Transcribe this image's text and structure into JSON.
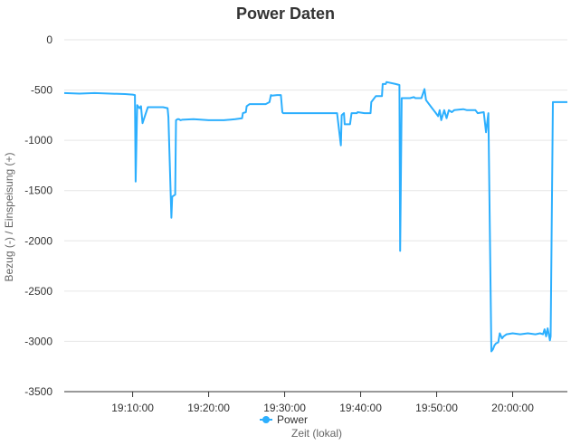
{
  "chart_data": {
    "type": "line",
    "title": "Power Daten",
    "xlabel": "Zeit (lokal)",
    "ylabel": "Bezug (-) / Einspeisung (+)",
    "ylim": [
      -3500,
      0
    ],
    "yticks": [
      0,
      -500,
      -1000,
      -1500,
      -2000,
      -2500,
      -3000,
      -3500
    ],
    "xlim": [
      0,
      66.2
    ],
    "xticks": [
      {
        "value": 9,
        "label": "19:10:00"
      },
      {
        "value": 19,
        "label": "19:20:00"
      },
      {
        "value": 29,
        "label": "19:30:00"
      },
      {
        "value": 39,
        "label": "19:40:00"
      },
      {
        "value": 49,
        "label": "19:50:00"
      },
      {
        "value": 59,
        "label": "20:00:00"
      }
    ],
    "grid": true,
    "legend": "bottom",
    "series": [
      {
        "name": "Power",
        "color": "#2caffe",
        "x": [
          0,
          2,
          4,
          6,
          8,
          9,
          9.3,
          9.4,
          9.6,
          9.9,
          10.1,
          10.3,
          11,
          13,
          13.6,
          13.7,
          14.1,
          14.2,
          14.6,
          14.7,
          14.9,
          15.1,
          15.3,
          15.5,
          17,
          19,
          21,
          22.5,
          23.4,
          23.5,
          23.9,
          24,
          24.4,
          24.5,
          26.5,
          27,
          27.2,
          27.3,
          28,
          28.5,
          28.7,
          28.8,
          30,
          33,
          35,
          35.9,
          36,
          36.4,
          36.5,
          36.8,
          36.9,
          37.6,
          37.8,
          38.5,
          38.6,
          39.5,
          40.3,
          40.4,
          41,
          41.8,
          41.9,
          42.3,
          42.4,
          43.6,
          44.1,
          44.2,
          44.4,
          45.5,
          46,
          46.2,
          46.5,
          47,
          47.4,
          47.6,
          48.4,
          48.6,
          48.8,
          49.2,
          49.4,
          49.6,
          50,
          50.3,
          50.6,
          51,
          51.3,
          52.5,
          53,
          54.1,
          54.4,
          55.2,
          55.5,
          55.8,
          56.2,
          56.4,
          56.6,
          56.8,
          57.1,
          57.3,
          57.6,
          57.8,
          58.2,
          59,
          60,
          61,
          62,
          62.6,
          63,
          63.2,
          63.4,
          63.6,
          63.9,
          64,
          64.3,
          65,
          66.2
        ],
        "values": [
          -530,
          -535,
          -530,
          -535,
          -540,
          -545,
          -550,
          -1410,
          -650,
          -680,
          -660,
          -830,
          -670,
          -670,
          -680,
          -770,
          -1770,
          -1560,
          -1540,
          -800,
          -790,
          -790,
          -800,
          -795,
          -790,
          -800,
          -800,
          -790,
          -780,
          -730,
          -720,
          -660,
          -640,
          -640,
          -640,
          -620,
          -550,
          -555,
          -550,
          -550,
          -720,
          -730,
          -730,
          -730,
          -730,
          -730,
          -800,
          -1050,
          -750,
          -730,
          -840,
          -840,
          -730,
          -730,
          -720,
          -730,
          -730,
          -620,
          -560,
          -560,
          -440,
          -440,
          -420,
          -440,
          -450,
          -2100,
          -580,
          -580,
          -570,
          -580,
          -580,
          -580,
          -490,
          -600,
          -680,
          -700,
          -720,
          -760,
          -700,
          -800,
          -700,
          -780,
          -700,
          -720,
          -700,
          -690,
          -700,
          -700,
          -730,
          -720,
          -920,
          -730,
          -3100,
          -3080,
          -3040,
          -3020,
          -3010,
          -2920,
          -2970,
          -2950,
          -2930,
          -2920,
          -2930,
          -2920,
          -2930,
          -2920,
          -2930,
          -2880,
          -2950,
          -2870,
          -2990,
          -2950,
          -620,
          -620,
          -620
        ]
      }
    ]
  }
}
